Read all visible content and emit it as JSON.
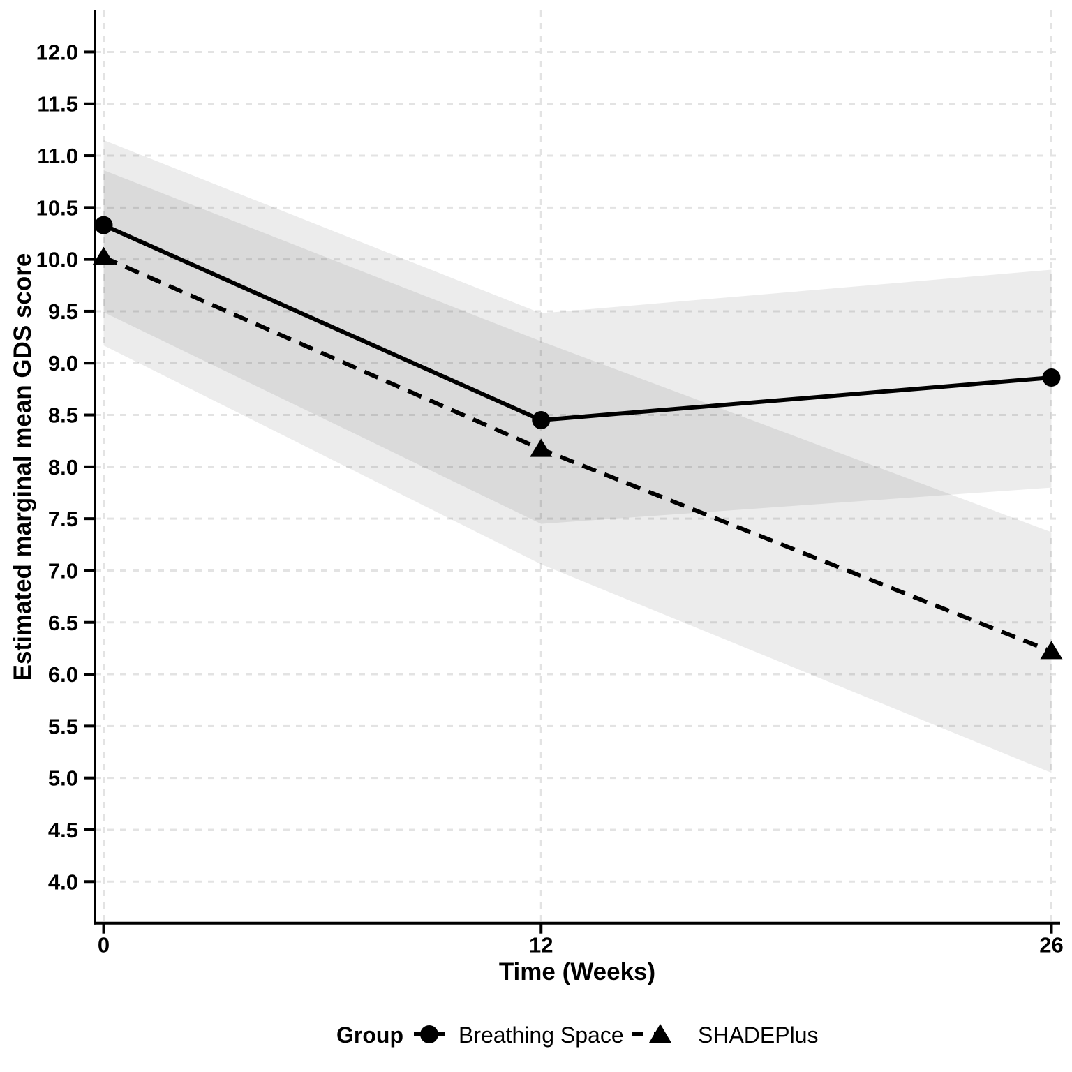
{
  "chart_data": {
    "type": "line",
    "title": "",
    "xlabel": "Time (Weeks)",
    "ylabel": "Estimated marginal mean GDS score",
    "legend_title": "Group",
    "legend_position": "bottom-center",
    "grid": "dashed-major",
    "x_tick_values": [
      0,
      12,
      26
    ],
    "x_tick_labels": [
      "0",
      "12",
      "26"
    ],
    "y_tick_values": [
      12.0,
      11.5,
      11.0,
      10.5,
      10.0,
      9.5,
      9.0,
      8.5,
      8.0,
      7.5,
      7.0,
      6.5,
      6.0,
      5.5,
      5.0,
      4.5,
      4.0
    ],
    "y_tick_labels": [
      "12.0",
      "11.5",
      "11.0",
      "10.5",
      "10.0",
      "9.5",
      "9.0",
      "8.5",
      "8.0",
      "7.5",
      "7.0",
      "6.5",
      "6.0",
      "5.5",
      "5.0",
      "4.5",
      "4.0"
    ],
    "xlim": [
      -0.24,
      26.24
    ],
    "ylim": [
      3.6,
      12.4
    ],
    "x": [
      0,
      12,
      26
    ],
    "series": [
      {
        "name": "Breathing Space",
        "marker": "circle",
        "line_style": "solid",
        "values": [
          10.33,
          8.45,
          8.86
        ],
        "ci_lower": [
          9.49,
          7.45,
          7.8
        ],
        "ci_upper": [
          11.15,
          9.48,
          9.9
        ]
      },
      {
        "name": "SHADEPlus",
        "marker": "triangle",
        "line_style": "dashed",
        "values": [
          10.02,
          8.17,
          6.22
        ],
        "ci_lower": [
          9.17,
          7.06,
          5.05
        ],
        "ci_upper": [
          10.86,
          9.21,
          7.37
        ]
      }
    ],
    "colors": {
      "line": "#000000",
      "text": "#000000",
      "axis_line": "#000000",
      "grid_line": "#e3e3e3",
      "ribbon_fill": "rgba(0,0,0,0.075)",
      "background": "#ffffff"
    }
  }
}
